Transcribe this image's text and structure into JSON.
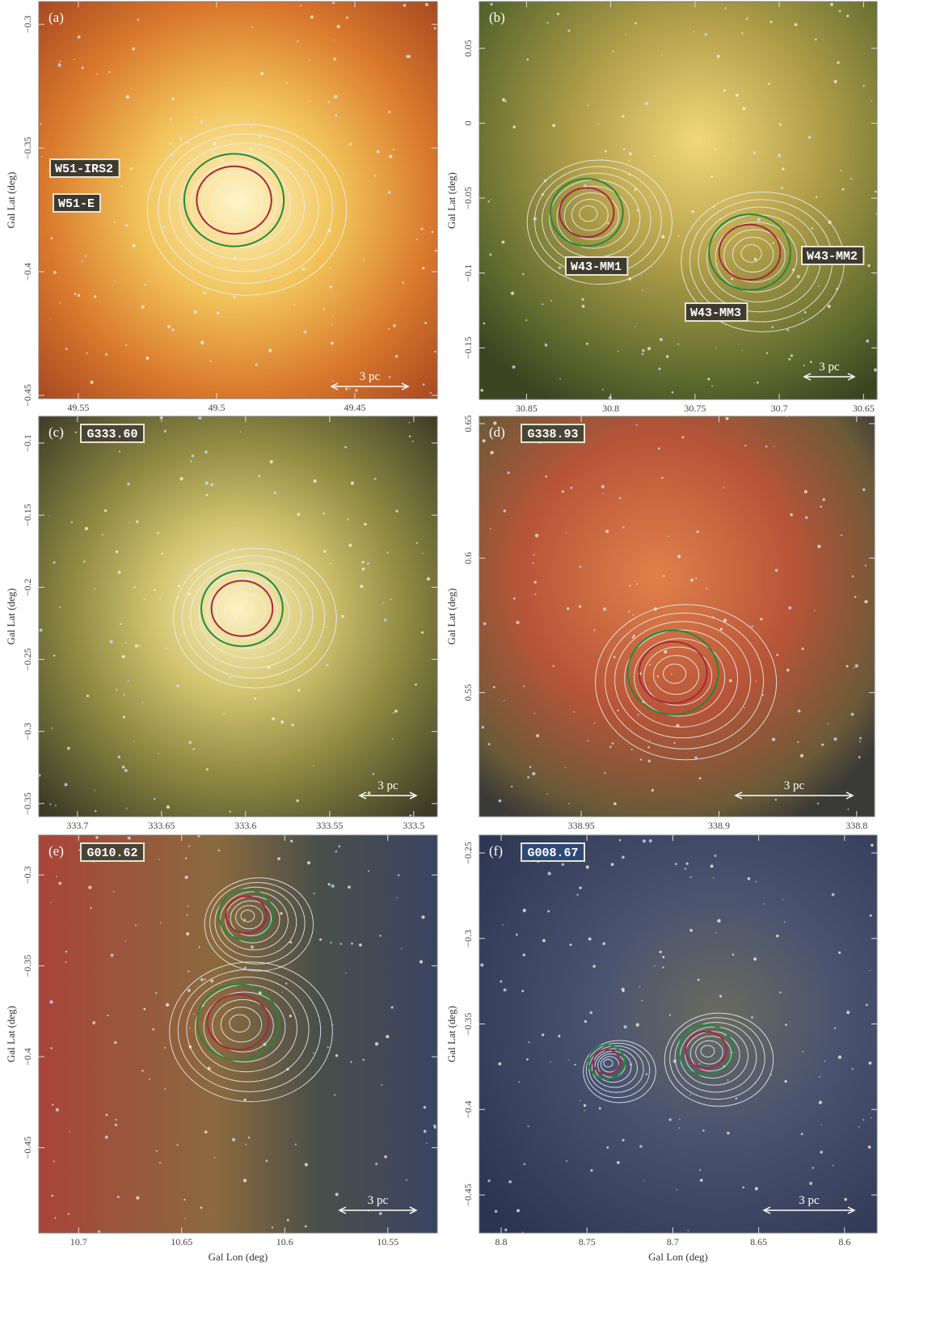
{
  "panels": [
    {
      "tag": "(a)",
      "regions": [
        "W51-IRS2",
        "W51-E"
      ],
      "scale_bar": "3 pc",
      "y_title": "Gal Lat (deg)",
      "xlim": [
        49.5643,
        49.4202
      ],
      "xticks": [
        49.55,
        49.5,
        49.45
      ],
      "ylim": [
        -0.2908,
        -0.4513
      ],
      "yticks": [
        {
          "value": -0.3,
          "label": "−0.3"
        },
        {
          "value": -0.35,
          "label": "−0.35"
        },
        {
          "value": -0.4,
          "label": "−0.4"
        },
        {
          "value": -0.45,
          "label": "−0.45"
        }
      ]
    },
    {
      "tag": "(b)",
      "regions": [
        "W43-MM1",
        "W43-MM2",
        "W43-MM3"
      ],
      "scale_bar": "3 pc",
      "y_title": "Gal Lat (deg)",
      "xlim": [
        30.878,
        30.642
      ],
      "xticks": [
        30.85,
        30.8,
        30.75,
        30.7,
        30.65
      ],
      "ylim": [
        0.0812,
        -0.1844
      ],
      "yticks": [
        0.05,
        0,
        {
          "value": -0.05,
          "label": "−0.05"
        },
        {
          "value": -0.1,
          "label": "−0.1"
        },
        {
          "value": -0.15,
          "label": "−0.15"
        }
      ]
    },
    {
      "tag": "(c)",
      "source": "G333.60",
      "scale_bar": "3 pc",
      "y_title": "Gal Lat (deg)",
      "xlim": [
        333.723,
        333.486
      ],
      "xticks": [
        333.7,
        333.65,
        333.6,
        333.55,
        333.5
      ],
      "ylim": [
        -0.0815,
        -0.359
      ],
      "yticks": [
        {
          "value": -0.1,
          "label": "−0.1"
        },
        {
          "value": -0.15,
          "label": "−0.15"
        },
        {
          "value": -0.2,
          "label": "−0.2"
        },
        {
          "value": -0.25,
          "label": "−0.25"
        },
        {
          "value": -0.3,
          "label": "−0.3"
        },
        {
          "value": -0.35,
          "label": "−0.35"
        }
      ]
    },
    {
      "tag": "(d)",
      "source": "G338.93",
      "scale_bar": "3 pc",
      "y_title": "Gal Lat (deg)",
      "xlim": [
        338.987,
        338.8435
      ],
      "xticks": [
        338.95,
        338.9,
        {
          "value": 338.85,
          "label": "338.8"
        }
      ],
      "ylim": [
        0.6527,
        0.5039
      ],
      "yticks": [
        0.65,
        0.6,
        0.55
      ]
    },
    {
      "tag": "(e)",
      "source": "G010.62",
      "scale_bar": "3 pc",
      "y_title": "Gal Lat (deg)",
      "x_title": "Gal Lon (deg)",
      "xlim": [
        10.7193,
        10.526
      ],
      "xticks": [
        10.7,
        10.65,
        10.6,
        10.55
      ],
      "ylim": [
        -0.2781,
        -0.4969
      ],
      "yticks": [
        {
          "value": -0.3,
          "label": "−0.3"
        },
        {
          "value": -0.35,
          "label": "−0.35"
        },
        {
          "value": -0.4,
          "label": "−0.4"
        },
        {
          "value": -0.45,
          "label": "−0.45"
        }
      ]
    },
    {
      "tag": "(f)",
      "source": "G008.67",
      "scale_bar": "3 pc",
      "y_title": "Gal Lat (deg)",
      "x_title": "Gal Lon (deg)",
      "xlim": [
        8.8127,
        8.5811
      ],
      "xticks": [
        8.8,
        8.75,
        8.7,
        8.65,
        8.6
      ],
      "ylim": [
        -0.2396,
        -0.4722
      ],
      "yticks": [
        {
          "value": -0.25,
          "label": "−0.25"
        },
        {
          "value": -0.3,
          "label": "−0.3"
        },
        {
          "value": -0.35,
          "label": "−0.35"
        },
        {
          "value": -0.4,
          "label": "−0.4"
        },
        {
          "value": -0.45,
          "label": "−0.45"
        }
      ]
    }
  ]
}
